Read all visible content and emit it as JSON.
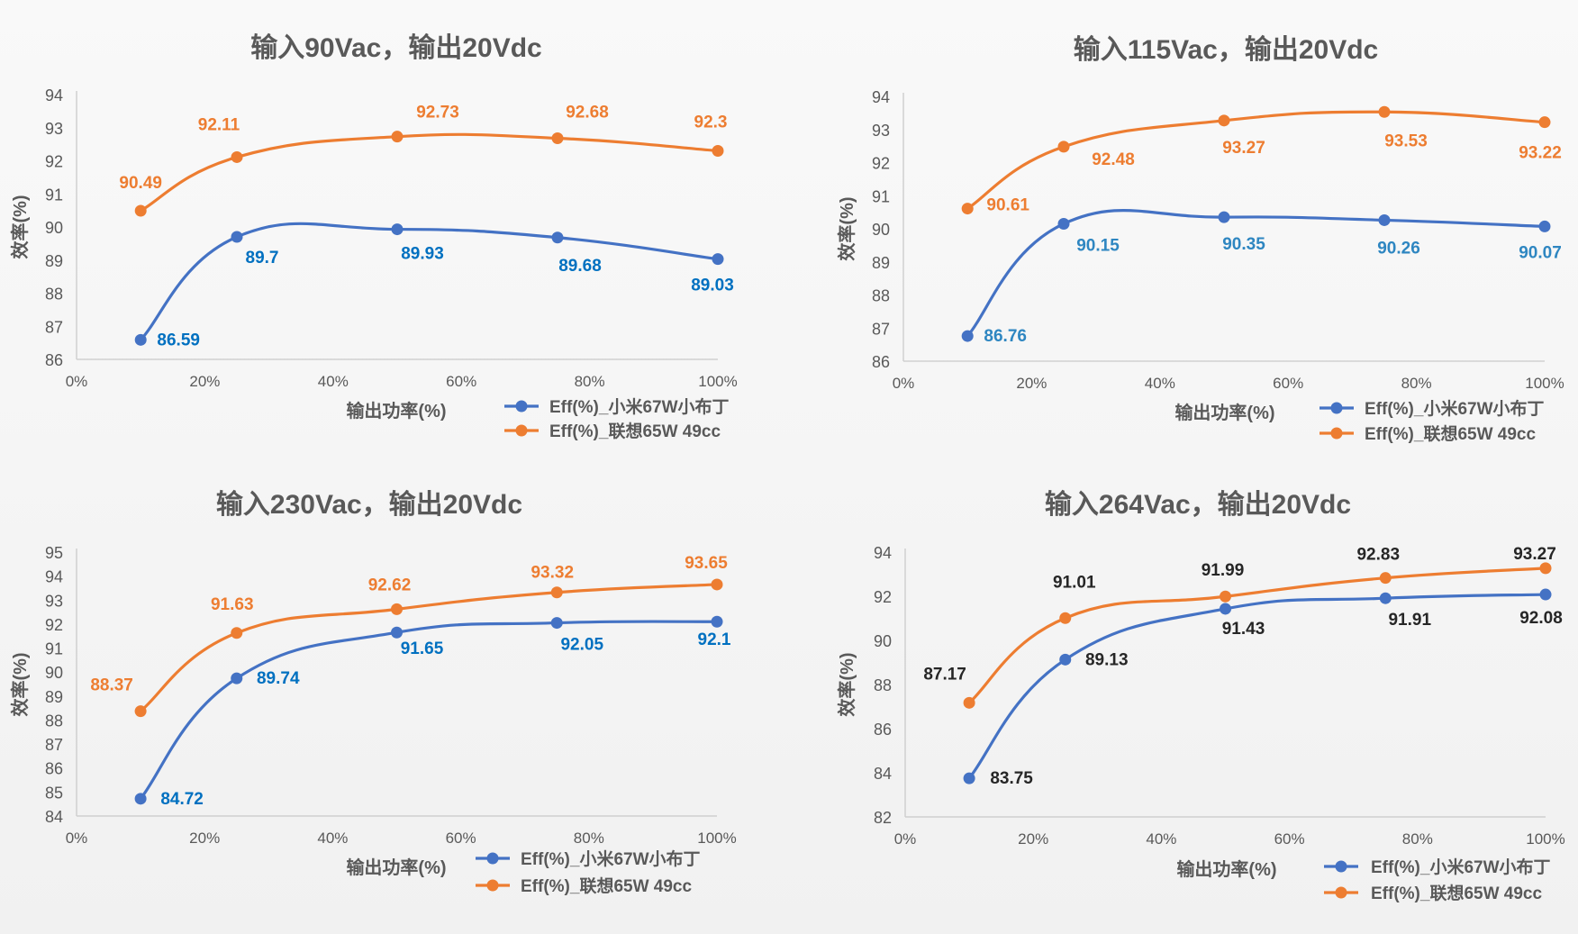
{
  "chart_data": [
    {
      "type": "line",
      "title": "输入90Vac，输出20Vdc",
      "xlabel": "输出功率(%)",
      "ylabel": "效率(%)",
      "xlim": [
        0,
        100
      ],
      "xticks": [
        "0%",
        "20%",
        "40%",
        "60%",
        "80%",
        "100%"
      ],
      "ylim": [
        86,
        94
      ],
      "yticks": [
        86,
        87,
        88,
        89,
        90,
        91,
        92,
        93,
        94
      ],
      "x": [
        10,
        25,
        50,
        75,
        100
      ],
      "series": [
        {
          "name": "Eff(%)_小米67W小布丁",
          "color": "#4472C4",
          "label_color": "#0070C0",
          "values": [
            86.59,
            89.7,
            89.93,
            89.68,
            89.03
          ],
          "labels": [
            "86.59",
            "89.7",
            "89.93",
            "89.68",
            "89.03"
          ]
        },
        {
          "name": "Eff(%)_联想65W 49cc",
          "color": "#ED7D31",
          "label_color": "#ED7D31",
          "values": [
            90.49,
            92.11,
            92.73,
            92.68,
            92.3
          ],
          "labels": [
            "90.49",
            "92.11",
            "92.73",
            "92.68",
            "92.3"
          ]
        }
      ],
      "legend": "bottom-right",
      "grid": false
    },
    {
      "type": "line",
      "title": "输入115Vac，输出20Vdc",
      "xlabel": "输出功率(%)",
      "ylabel": "效率(%)",
      "xlim": [
        0,
        100
      ],
      "xticks": [
        "0%",
        "20%",
        "40%",
        "60%",
        "80%",
        "100%"
      ],
      "ylim": [
        86,
        94
      ],
      "yticks": [
        86,
        87,
        88,
        89,
        90,
        91,
        92,
        93,
        94
      ],
      "x": [
        10,
        25,
        50,
        75,
        100
      ],
      "series": [
        {
          "name": "Eff(%)_小米67W小布丁",
          "color": "#4472C4",
          "label_color": "#2E86C1",
          "values": [
            86.76,
            90.15,
            90.35,
            90.26,
            90.07
          ],
          "labels": [
            "86.76",
            "90.15",
            "90.35",
            "90.26",
            "90.07"
          ]
        },
        {
          "name": "Eff(%)_联想65W 49cc",
          "color": "#ED7D31",
          "label_color": "#ED7D31",
          "values": [
            90.61,
            92.48,
            93.27,
            93.53,
            93.22
          ],
          "labels": [
            "90.61",
            "92.48",
            "93.27",
            "93.53",
            "93.22"
          ]
        }
      ],
      "legend": "bottom-right",
      "grid": false
    },
    {
      "type": "line",
      "title": "输入230Vac，输出20Vdc",
      "xlabel": "输出功率(%)",
      "ylabel": "效率(%)",
      "xlim": [
        0,
        100
      ],
      "xticks": [
        "0%",
        "20%",
        "40%",
        "60%",
        "80%",
        "100%"
      ],
      "ylim": [
        84,
        95
      ],
      "yticks": [
        84,
        85,
        86,
        87,
        88,
        89,
        90,
        91,
        92,
        93,
        94,
        95
      ],
      "x": [
        10,
        25,
        50,
        75,
        100
      ],
      "series": [
        {
          "name": "Eff(%)_小米67W小布丁",
          "color": "#4472C4",
          "label_color": "#0070C0",
          "values": [
            84.72,
            89.74,
            91.65,
            92.05,
            92.1
          ],
          "labels": [
            "84.72",
            "89.74",
            "91.65",
            "92.05",
            "92.1"
          ]
        },
        {
          "name": "Eff(%)_联想65W 49cc",
          "color": "#ED7D31",
          "label_color": "#ED7D31",
          "values": [
            88.37,
            91.63,
            92.62,
            93.32,
            93.65
          ],
          "labels": [
            "88.37",
            "91.63",
            "92.62",
            "93.32",
            "93.65"
          ]
        }
      ],
      "legend": "bottom-right",
      "grid": false
    },
    {
      "type": "line",
      "title": "输入264Vac，输出20Vdc",
      "xlabel": "输出功率(%)",
      "ylabel": "效率(%)",
      "xlim": [
        0,
        100
      ],
      "xticks": [
        "0%",
        "20%",
        "40%",
        "60%",
        "80%",
        "100%"
      ],
      "ylim": [
        82,
        94
      ],
      "yticks": [
        82,
        84,
        86,
        88,
        90,
        92,
        94
      ],
      "x": [
        10,
        25,
        50,
        75,
        100
      ],
      "series": [
        {
          "name": "Eff(%)_小米67W小布丁",
          "color": "#4472C4",
          "label_color": "#262626",
          "values": [
            83.75,
            89.13,
            91.43,
            91.91,
            92.08
          ],
          "labels": [
            "83.75",
            "89.13",
            "91.43",
            "91.91",
            "92.08"
          ]
        },
        {
          "name": "Eff(%)_联想65W 49cc",
          "color": "#ED7D31",
          "label_color": "#262626",
          "values": [
            87.17,
            91.01,
            91.99,
            92.83,
            93.27
          ],
          "labels": [
            "87.17",
            "91.01",
            "91.99",
            "92.83",
            "93.27"
          ]
        }
      ],
      "legend": "bottom-right",
      "grid": false
    }
  ]
}
